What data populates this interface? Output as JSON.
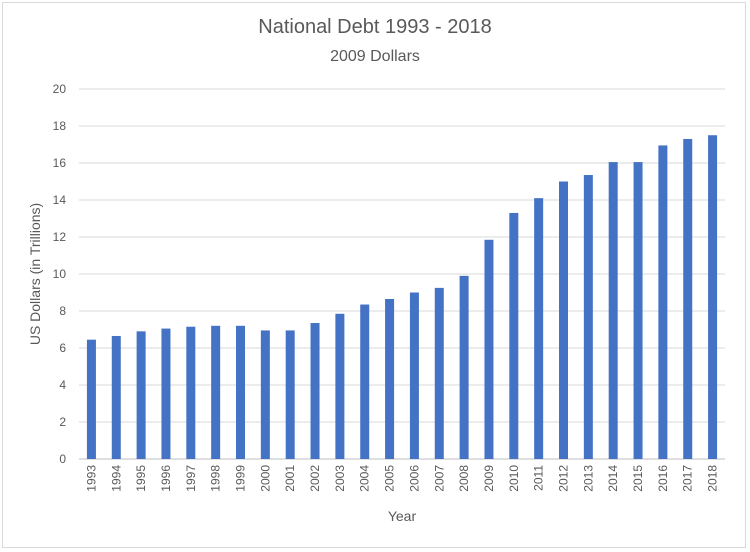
{
  "chart_data": {
    "type": "bar",
    "title": "National Debt 1993 - 2018",
    "subtitle": "2009 Dollars",
    "xlabel": "Year",
    "ylabel": "US Dollars (in Trillions)",
    "ylim": [
      0,
      20
    ],
    "yticks": [
      "0",
      "2",
      "4",
      "6",
      "8",
      "10",
      "12",
      "14",
      "16",
      "18",
      "20"
    ],
    "grid": true,
    "color": "#4472C4",
    "categories": [
      "1993",
      "1994",
      "1995",
      "1996",
      "1997",
      "1998",
      "1999",
      "2000",
      "2001",
      "2002",
      "2003",
      "2004",
      "2005",
      "2006",
      "2007",
      "2008",
      "2009",
      "2010",
      "2011",
      "2012",
      "2013",
      "2014",
      "2015",
      "2016",
      "2017",
      "2018"
    ],
    "values": [
      6.45,
      6.65,
      6.9,
      7.05,
      7.15,
      7.2,
      7.2,
      6.95,
      6.95,
      7.35,
      7.85,
      8.35,
      8.65,
      9.0,
      9.25,
      9.9,
      11.85,
      13.3,
      14.1,
      15.0,
      15.35,
      16.05,
      16.05,
      16.95,
      17.3,
      17.5
    ]
  }
}
